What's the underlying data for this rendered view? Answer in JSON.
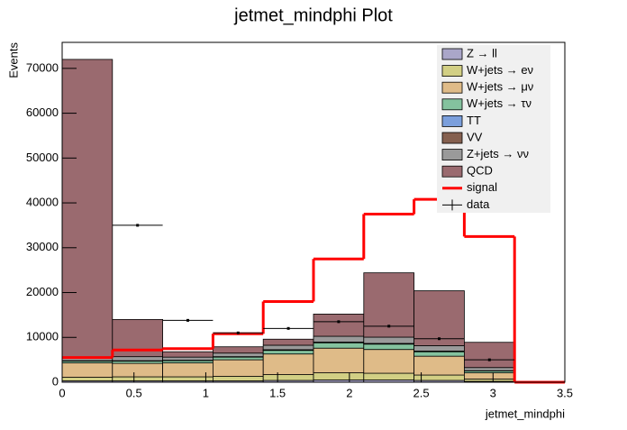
{
  "chart_data": {
    "type": "stacked_histogram",
    "title": "jetmet_mindphi Plot",
    "x_label": "jetmet_mindphi",
    "y_label": "Events",
    "bins": [
      0,
      0.35,
      0.7,
      1.05,
      1.4,
      1.75,
      2.1,
      2.45,
      2.8,
      3.15,
      3.5
    ],
    "series": [
      {
        "name": "Z → ll",
        "color": "#aaa6c9",
        "values": [
          300,
          300,
          300,
          300,
          400,
          500,
          500,
          400,
          200,
          0
        ]
      },
      {
        "name": "W+jets → eν",
        "color": "#d2cf84",
        "values": [
          800,
          900,
          900,
          1000,
          1300,
          1600,
          1500,
          1200,
          500,
          0
        ]
      },
      {
        "name": "W+jets → μν",
        "color": "#dfbb88",
        "values": [
          3200,
          3000,
          3100,
          3700,
          4600,
          5500,
          5300,
          4200,
          1400,
          0
        ]
      },
      {
        "name": "W+jets → τν",
        "color": "#84c29e",
        "values": [
          400,
          500,
          500,
          600,
          800,
          1200,
          1200,
          1000,
          400,
          0
        ]
      },
      {
        "name": "TT",
        "color": "#7b9fdc",
        "values": [
          50,
          50,
          50,
          50,
          50,
          50,
          50,
          50,
          20,
          0
        ]
      },
      {
        "name": "VV",
        "color": "#85604f",
        "values": [
          50,
          50,
          50,
          50,
          100,
          100,
          100,
          100,
          50,
          0
        ]
      },
      {
        "name": "Z+jets → νν",
        "color": "#9a9a9a",
        "values": [
          800,
          900,
          700,
          800,
          1000,
          1300,
          1400,
          1200,
          700,
          0
        ]
      },
      {
        "name": "QCD",
        "color": "#9a6a6f",
        "values": [
          66400,
          8300,
          1200,
          1400,
          1350,
          4950,
          14350,
          12250,
          5630,
          0
        ]
      }
    ],
    "signal": {
      "name": "signal",
      "color": "#ff0000",
      "values": [
        5500,
        7200,
        7500,
        10800,
        18000,
        27500,
        37500,
        40800,
        32500,
        0
      ]
    },
    "data": {
      "name": "data",
      "color": "#000000",
      "values": [
        null,
        35000,
        13800,
        11000,
        12000,
        13500,
        12500,
        9700,
        5000,
        null
      ]
    },
    "xlim": [
      0,
      3.5
    ],
    "xticks": [
      0,
      0.5,
      1,
      1.5,
      2,
      2.5,
      3,
      3.5
    ],
    "ylim": [
      0,
      75800
    ],
    "yticks": [
      0,
      10000,
      20000,
      30000,
      40000,
      50000,
      60000,
      70000
    ],
    "legend": "top-right"
  }
}
